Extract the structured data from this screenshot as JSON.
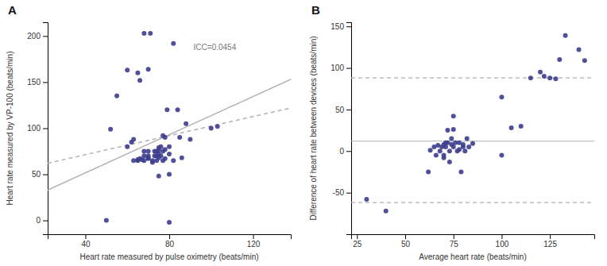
{
  "chart_data": [
    {
      "type": "scatter",
      "title": "A",
      "xlabel": "Heart rate measured by pulse oximetry (beats/min)",
      "ylabel": "Heart rate measured by VP-100 (beats/min)",
      "annotation": "ICC=0.0454",
      "xlim": [
        22,
        138
      ],
      "ylim": [
        -15,
        215
      ],
      "xticks": [
        40,
        80,
        120
      ],
      "yticks": [
        0,
        50,
        100,
        150,
        200
      ],
      "series": [
        {
          "type": "scatter",
          "color": "#3d3d8f",
          "x": [
            50,
            52,
            55,
            60,
            60,
            62,
            63,
            63,
            65,
            65,
            65,
            66,
            66,
            67,
            68,
            68,
            68,
            68,
            70,
            70,
            70,
            70,
            70,
            71,
            72,
            72,
            73,
            73,
            74,
            74,
            74,
            75,
            75,
            75,
            75,
            76,
            76,
            77,
            77,
            77,
            78,
            78,
            78,
            79,
            80,
            80,
            80,
            82,
            82,
            84,
            85,
            86,
            88,
            90,
            100,
            103,
            75,
            80
          ],
          "values": [
            0,
            99,
            135,
            80,
            163,
            85,
            88,
            65,
            160,
            65,
            66,
            152,
            67,
            66,
            203,
            65,
            70,
            75,
            164,
            67,
            68,
            70,
            75,
            203,
            63,
            65,
            75,
            70,
            75,
            65,
            70,
            79,
            68,
            72,
            76,
            80,
            70,
            92,
            65,
            75,
            77,
            67,
            90,
            120,
            50,
            72,
            80,
            192,
            65,
            120,
            90,
            68,
            105,
            88,
            100,
            102,
            48,
            -2
          ]
        },
        {
          "type": "line",
          "color": "#b0b0b0",
          "line_style": "solid",
          "x": [
            22,
            138
          ],
          "values": [
            33,
            153
          ]
        },
        {
          "type": "line",
          "color": "#b0b0b0",
          "line_style": "dashed",
          "x": [
            22,
            138
          ],
          "values": [
            62,
            122
          ]
        }
      ]
    },
    {
      "type": "scatter",
      "title": "B",
      "xlabel": "Average heart rate (beats/min)",
      "ylabel": "Difference of heart rate between devices (beats/min)",
      "xlim": [
        22,
        148
      ],
      "ylim": [
        -100,
        155
      ],
      "xticks": [
        25,
        50,
        75,
        100,
        125
      ],
      "yticks": [
        -50,
        0,
        50,
        100,
        150
      ],
      "series": [
        {
          "type": "scatter",
          "color": "#3d3d8f",
          "x": [
            30,
            40,
            62,
            63,
            65,
            66,
            67,
            68,
            69,
            70,
            70,
            70,
            71,
            71,
            72,
            72,
            73,
            73,
            74,
            74,
            75,
            75,
            75,
            76,
            77,
            78,
            78,
            79,
            80,
            80,
            81,
            82,
            83,
            85,
            100,
            100,
            105,
            110,
            115,
            120,
            122,
            125,
            128,
            130,
            133,
            140,
            143
          ],
          "values": [
            -58,
            -72,
            -25,
            1,
            5,
            -5,
            7,
            0,
            5,
            -8,
            -5,
            8,
            5,
            10,
            10,
            25,
            -13,
            0,
            8,
            15,
            42,
            5,
            26,
            10,
            0,
            2,
            10,
            -25,
            5,
            8,
            0,
            15,
            5,
            9,
            65,
            -5,
            28,
            30,
            88,
            95,
            90,
            88,
            87,
            110,
            139,
            122,
            109
          ]
        },
        {
          "type": "hline",
          "color": "#b0b0b0",
          "line_style": "solid",
          "values": [
            12
          ]
        },
        {
          "type": "hline",
          "color": "#b0b0b0",
          "line_style": "dashed",
          "values": [
            88
          ]
        },
        {
          "type": "hline",
          "color": "#b0b0b0",
          "line_style": "dashed",
          "values": [
            -62
          ]
        }
      ]
    }
  ]
}
